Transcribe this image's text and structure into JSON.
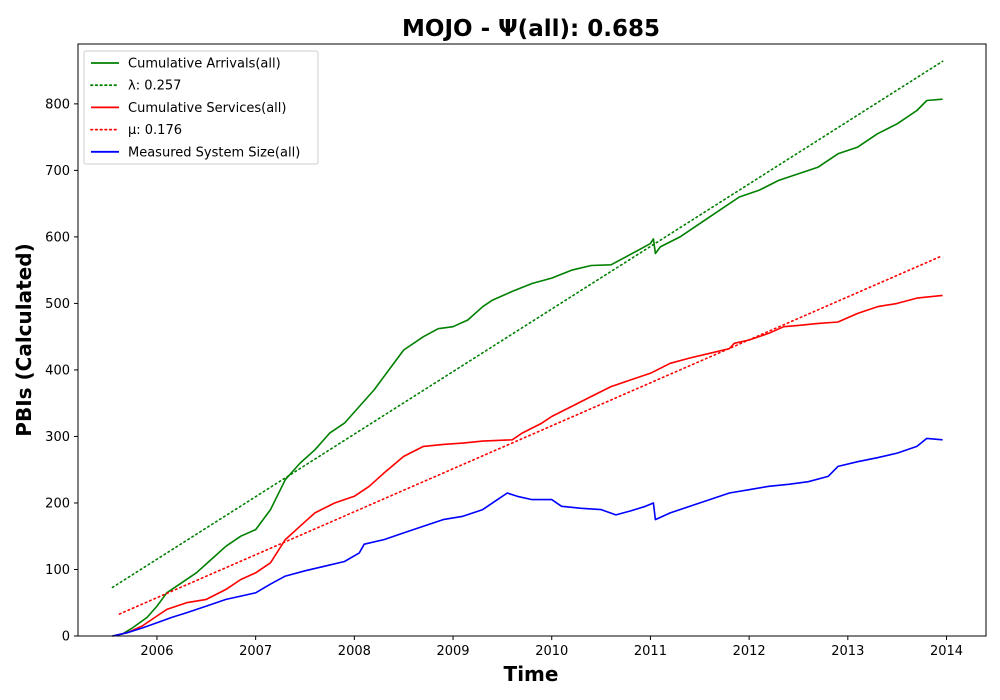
{
  "chart_data": {
    "type": "line",
    "title": "MOJO -  Ψ(all): 0.685",
    "xlabel": "Time",
    "ylabel": "PBIs (Calculated)",
    "xlim": [
      2005.2,
      2014.4
    ],
    "ylim": [
      0,
      890
    ],
    "xticks": [
      2006,
      2007,
      2008,
      2009,
      2010,
      2011,
      2012,
      2013,
      2014
    ],
    "yticks": [
      0,
      100,
      200,
      300,
      400,
      500,
      600,
      700,
      800
    ],
    "grid": false,
    "legend_position": "top-left",
    "series": [
      {
        "name": "Cumulative Arrivals(all)",
        "style": "solid",
        "color": "#008000",
        "x": [
          2005.55,
          2005.65,
          2005.75,
          2005.9,
          2006.0,
          2006.1,
          2006.25,
          2006.4,
          2006.55,
          2006.7,
          2006.85,
          2007.0,
          2007.15,
          2007.3,
          2007.45,
          2007.6,
          2007.75,
          2007.9,
          2008.05,
          2008.2,
          2008.35,
          2008.5,
          2008.7,
          2008.85,
          2009.0,
          2009.15,
          2009.3,
          2009.4,
          2009.6,
          2009.8,
          2010.0,
          2010.2,
          2010.4,
          2010.6,
          2010.75,
          2010.9,
          2011.0,
          2011.03,
          2011.05,
          2011.1,
          2011.3,
          2011.5,
          2011.7,
          2011.9,
          2012.1,
          2012.3,
          2012.5,
          2012.7,
          2012.9,
          2013.1,
          2013.3,
          2013.5,
          2013.7,
          2013.8,
          2013.96
        ],
        "values": [
          0,
          3,
          12,
          28,
          45,
          65,
          80,
          95,
          115,
          135,
          150,
          160,
          190,
          235,
          260,
          280,
          305,
          320,
          345,
          370,
          400,
          430,
          450,
          462,
          465,
          475,
          495,
          505,
          518,
          530,
          538,
          550,
          557,
          558,
          570,
          582,
          590,
          597,
          575,
          585,
          600,
          620,
          640,
          660,
          670,
          685,
          695,
          705,
          725,
          735,
          755,
          770,
          790,
          805,
          807
        ]
      },
      {
        "name": "λ: 0.257",
        "style": "dotted",
        "color": "#008000",
        "x": [
          2005.55,
          2013.96
        ],
        "values": [
          73,
          864
        ]
      },
      {
        "name": "Cumulative Services(all)",
        "style": "solid",
        "color": "#ff0000",
        "x": [
          2005.55,
          2005.7,
          2005.85,
          2006.0,
          2006.1,
          2006.3,
          2006.5,
          2006.7,
          2006.85,
          2007.0,
          2007.15,
          2007.3,
          2007.45,
          2007.6,
          2007.8,
          2008.0,
          2008.15,
          2008.3,
          2008.5,
          2008.7,
          2008.9,
          2009.1,
          2009.3,
          2009.6,
          2009.7,
          2009.9,
          2010.0,
          2010.2,
          2010.4,
          2010.6,
          2010.8,
          2011.0,
          2011.2,
          2011.4,
          2011.6,
          2011.8,
          2011.85,
          2012.0,
          2012.2,
          2012.35,
          2012.5,
          2012.7,
          2012.9,
          2013.1,
          2013.3,
          2013.5,
          2013.7,
          2013.96
        ],
        "values": [
          0,
          5,
          15,
          30,
          40,
          50,
          55,
          70,
          85,
          95,
          110,
          145,
          165,
          185,
          200,
          210,
          225,
          245,
          270,
          285,
          288,
          290,
          293,
          295,
          305,
          320,
          330,
          345,
          360,
          375,
          385,
          395,
          410,
          418,
          425,
          432,
          440,
          445,
          455,
          465,
          467,
          470,
          472,
          485,
          495,
          500,
          508,
          512
        ]
      },
      {
        "name": "μ: 0.176",
        "style": "dotted",
        "color": "#ff0000",
        "x": [
          2005.62,
          2013.93
        ],
        "values": [
          33,
          570
        ]
      },
      {
        "name": "Measured System Size(all)",
        "style": "solid",
        "color": "#0000ff",
        "x": [
          2005.55,
          2005.7,
          2005.85,
          2006.0,
          2006.15,
          2006.3,
          2006.5,
          2006.7,
          2006.85,
          2007.0,
          2007.15,
          2007.3,
          2007.5,
          2007.7,
          2007.9,
          2008.05,
          2008.1,
          2008.3,
          2008.5,
          2008.7,
          2008.9,
          2009.1,
          2009.3,
          2009.45,
          2009.55,
          2009.65,
          2009.8,
          2010.0,
          2010.1,
          2010.3,
          2010.5,
          2010.65,
          2010.8,
          2010.95,
          2011.03,
          2011.05,
          2011.2,
          2011.4,
          2011.6,
          2011.8,
          2012.0,
          2012.2,
          2012.4,
          2012.6,
          2012.8,
          2012.9,
          2013.1,
          2013.3,
          2013.5,
          2013.7,
          2013.8,
          2013.96
        ],
        "values": [
          0,
          5,
          12,
          20,
          28,
          35,
          45,
          55,
          60,
          65,
          78,
          90,
          98,
          105,
          112,
          125,
          138,
          145,
          155,
          165,
          175,
          180,
          190,
          205,
          215,
          210,
          205,
          205,
          195,
          192,
          190,
          182,
          188,
          195,
          200,
          175,
          185,
          195,
          205,
          215,
          220,
          225,
          228,
          232,
          240,
          255,
          262,
          268,
          275,
          285,
          297,
          295
        ]
      }
    ]
  }
}
